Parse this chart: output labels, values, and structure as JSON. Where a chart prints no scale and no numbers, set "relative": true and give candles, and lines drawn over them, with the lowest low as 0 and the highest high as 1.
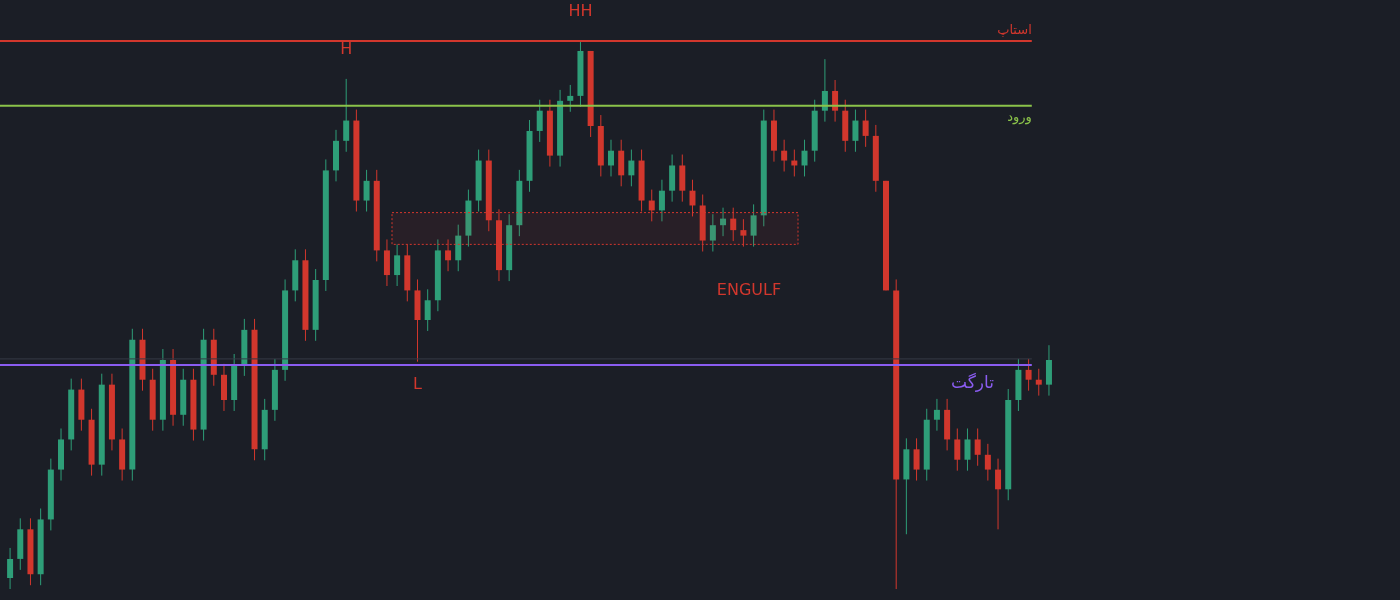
{
  "chart_data": {
    "type": "candlestick",
    "relative": true,
    "categories": [
      null,
      null,
      null,
      null,
      null,
      null,
      null,
      null,
      null,
      null,
      null,
      null,
      null,
      null,
      null,
      null,
      null,
      null,
      null,
      null,
      null,
      null,
      null,
      null,
      null,
      null,
      null,
      null,
      null,
      null,
      null,
      null,
      null,
      null,
      null,
      null,
      null,
      null,
      null,
      null,
      null,
      null,
      null,
      null,
      null,
      null,
      null,
      null,
      null,
      null,
      null,
      null,
      null,
      null,
      null,
      null,
      null,
      null,
      null,
      null,
      null,
      null,
      null,
      null,
      null,
      null,
      null,
      null,
      null,
      null,
      null,
      null,
      null,
      null,
      null,
      null,
      null,
      null,
      null,
      null,
      null,
      null,
      null,
      null,
      null,
      null,
      null,
      null,
      null,
      null,
      null,
      null,
      null,
      null,
      null,
      null,
      null,
      null,
      null,
      null,
      null,
      null,
      null
    ],
    "ohlc": [
      [
        0.02,
        0.075,
        0.0,
        0.055
      ],
      [
        0.055,
        0.129,
        0.035,
        0.109
      ],
      [
        0.109,
        0.129,
        0.007,
        0.027
      ],
      [
        0.027,
        0.147,
        0.007,
        0.127
      ],
      [
        0.127,
        0.238,
        0.107,
        0.218
      ],
      [
        0.218,
        0.293,
        0.198,
        0.273
      ],
      [
        0.273,
        0.384,
        0.253,
        0.364
      ],
      [
        0.364,
        0.384,
        0.289,
        0.309
      ],
      [
        0.309,
        0.329,
        0.207,
        0.227
      ],
      [
        0.227,
        0.393,
        0.207,
        0.373
      ],
      [
        0.373,
        0.393,
        0.253,
        0.273
      ],
      [
        0.273,
        0.293,
        0.198,
        0.218
      ],
      [
        0.218,
        0.475,
        0.198,
        0.455
      ],
      [
        0.455,
        0.475,
        0.362,
        0.382
      ],
      [
        0.382,
        0.402,
        0.289,
        0.309
      ],
      [
        0.309,
        0.438,
        0.289,
        0.418
      ],
      [
        0.418,
        0.438,
        0.298,
        0.318
      ],
      [
        0.318,
        0.402,
        0.298,
        0.382
      ],
      [
        0.382,
        0.402,
        0.271,
        0.291
      ],
      [
        0.291,
        0.475,
        0.271,
        0.455
      ],
      [
        0.455,
        0.475,
        0.371,
        0.391
      ],
      [
        0.391,
        0.411,
        0.325,
        0.345
      ],
      [
        0.345,
        0.429,
        0.325,
        0.409
      ],
      [
        0.409,
        0.493,
        0.389,
        0.473
      ],
      [
        0.473,
        0.493,
        0.235,
        0.255
      ],
      [
        0.255,
        0.347,
        0.235,
        0.327
      ],
      [
        0.327,
        0.42,
        0.307,
        0.4
      ],
      [
        0.4,
        0.565,
        0.38,
        0.545
      ],
      [
        0.545,
        0.62,
        0.525,
        0.6
      ],
      [
        0.6,
        0.62,
        0.453,
        0.473
      ],
      [
        0.473,
        0.584,
        0.453,
        0.564
      ],
      [
        0.564,
        0.784,
        0.544,
        0.764
      ],
      [
        0.764,
        0.838,
        0.744,
        0.818
      ],
      [
        0.818,
        0.931,
        0.798,
        0.855
      ],
      [
        0.855,
        0.875,
        0.689,
        0.709
      ],
      [
        0.709,
        0.765,
        0.689,
        0.745
      ],
      [
        0.745,
        0.765,
        0.598,
        0.618
      ],
      [
        0.618,
        0.638,
        0.553,
        0.573
      ],
      [
        0.573,
        0.629,
        0.553,
        0.609
      ],
      [
        0.609,
        0.629,
        0.525,
        0.545
      ],
      [
        0.545,
        0.565,
        0.415,
        0.491
      ],
      [
        0.491,
        0.547,
        0.471,
        0.527
      ],
      [
        0.527,
        0.638,
        0.507,
        0.618
      ],
      [
        0.618,
        0.638,
        0.58,
        0.6
      ],
      [
        0.6,
        0.665,
        0.58,
        0.645
      ],
      [
        0.645,
        0.729,
        0.625,
        0.709
      ],
      [
        0.709,
        0.802,
        0.689,
        0.782
      ],
      [
        0.782,
        0.802,
        0.653,
        0.673
      ],
      [
        0.673,
        0.693,
        0.562,
        0.582
      ],
      [
        0.582,
        0.684,
        0.562,
        0.664
      ],
      [
        0.664,
        0.765,
        0.644,
        0.745
      ],
      [
        0.745,
        0.856,
        0.725,
        0.836
      ],
      [
        0.836,
        0.893,
        0.816,
        0.873
      ],
      [
        0.873,
        0.893,
        0.771,
        0.791
      ],
      [
        0.791,
        0.911,
        0.771,
        0.891
      ],
      [
        0.891,
        0.92,
        0.871,
        0.9
      ],
      [
        0.9,
        1.0,
        0.88,
        0.982
      ],
      [
        0.982,
        0.982,
        0.825,
        0.845
      ],
      [
        0.845,
        0.865,
        0.753,
        0.773
      ],
      [
        0.773,
        0.82,
        0.753,
        0.8
      ],
      [
        0.8,
        0.82,
        0.735,
        0.755
      ],
      [
        0.755,
        0.802,
        0.735,
        0.782
      ],
      [
        0.782,
        0.802,
        0.689,
        0.709
      ],
      [
        0.709,
        0.729,
        0.671,
        0.691
      ],
      [
        0.691,
        0.747,
        0.671,
        0.727
      ],
      [
        0.727,
        0.793,
        0.707,
        0.773
      ],
      [
        0.773,
        0.793,
        0.707,
        0.727
      ],
      [
        0.727,
        0.747,
        0.68,
        0.7
      ],
      [
        0.7,
        0.72,
        0.616,
        0.636
      ],
      [
        0.636,
        0.684,
        0.616,
        0.664
      ],
      [
        0.664,
        0.696,
        0.644,
        0.676
      ],
      [
        0.676,
        0.696,
        0.635,
        0.655
      ],
      [
        0.655,
        0.675,
        0.625,
        0.645
      ],
      [
        0.645,
        0.702,
        0.625,
        0.682
      ],
      [
        0.682,
        0.875,
        0.662,
        0.855
      ],
      [
        0.855,
        0.875,
        0.78,
        0.8
      ],
      [
        0.8,
        0.82,
        0.762,
        0.782
      ],
      [
        0.782,
        0.802,
        0.753,
        0.773
      ],
      [
        0.773,
        0.82,
        0.753,
        0.8
      ],
      [
        0.8,
        0.893,
        0.78,
        0.873
      ],
      [
        0.873,
        0.967,
        0.853,
        0.909
      ],
      [
        0.909,
        0.929,
        0.853,
        0.873
      ],
      [
        0.873,
        0.893,
        0.798,
        0.818
      ],
      [
        0.818,
        0.875,
        0.798,
        0.855
      ],
      [
        0.855,
        0.875,
        0.807,
        0.827
      ],
      [
        0.827,
        0.847,
        0.725,
        0.745
      ],
      [
        0.745,
        0.745,
        0.545,
        0.545
      ],
      [
        0.545,
        0.565,
        0.0,
        0.2
      ],
      [
        0.2,
        0.275,
        0.1,
        0.255
      ],
      [
        0.255,
        0.275,
        0.198,
        0.218
      ],
      [
        0.218,
        0.329,
        0.198,
        0.309
      ],
      [
        0.309,
        0.347,
        0.289,
        0.327
      ],
      [
        0.327,
        0.347,
        0.253,
        0.273
      ],
      [
        0.273,
        0.293,
        0.216,
        0.236
      ],
      [
        0.236,
        0.293,
        0.216,
        0.273
      ],
      [
        0.273,
        0.293,
        0.225,
        0.245
      ],
      [
        0.245,
        0.265,
        0.198,
        0.218
      ],
      [
        0.218,
        0.238,
        0.109,
        0.182
      ],
      [
        0.182,
        0.365,
        0.162,
        0.345
      ],
      [
        0.345,
        0.42,
        0.325,
        0.4
      ],
      [
        0.4,
        0.42,
        0.362,
        0.382
      ],
      [
        0.382,
        0.402,
        0.353,
        0.373
      ],
      [
        0.373,
        0.445,
        0.353,
        0.418
      ]
    ],
    "ref_lines": [
      {
        "axis": "y",
        "value": 1.0,
        "label": "استاپ",
        "color": "#d2372d"
      },
      {
        "axis": "y",
        "value": 0.882,
        "label": "ورود",
        "color": "#8bc34a"
      },
      {
        "axis": "y",
        "value": 0.409,
        "label": "تارگت",
        "color": "#8a5cf0"
      },
      {
        "axis": "y",
        "value": 0.42,
        "label": null,
        "color": "#363a45"
      }
    ],
    "bands": [
      {
        "axis": "y",
        "from": 0.629,
        "to": 0.687,
        "label": "ENGULF",
        "color": "#d2372d"
      }
    ],
    "annotations": [
      {
        "text": "H",
        "y": 0.931
      },
      {
        "text": "HH",
        "y": 1.0
      },
      {
        "text": "L",
        "y": 0.415
      }
    ]
  }
}
